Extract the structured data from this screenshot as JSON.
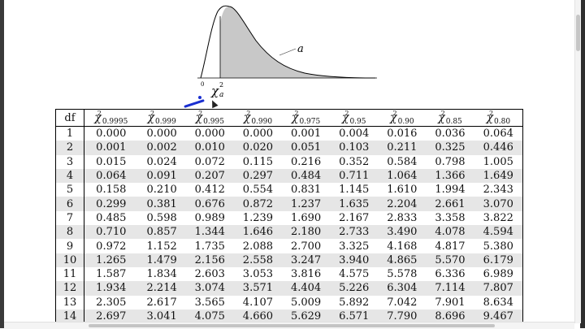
{
  "figure": {
    "area_label": "a",
    "axis_zero": "0",
    "critical_value_label": "χ",
    "critical_value_sup": "2",
    "critical_value_sub": "a",
    "shade_color": "#c8c8c8"
  },
  "table": {
    "df_header": "df",
    "columns": [
      {
        "symbol": "χ",
        "sup": "2",
        "sub": "0.9995"
      },
      {
        "symbol": "χ",
        "sup": "2",
        "sub": "0.999"
      },
      {
        "symbol": "χ",
        "sup": "2",
        "sub": "0.995"
      },
      {
        "symbol": "χ",
        "sup": "2",
        "sub": "0.990"
      },
      {
        "symbol": "χ",
        "sup": "2",
        "sub": "0.975"
      },
      {
        "symbol": "χ",
        "sup": "2",
        "sub": "0.95"
      },
      {
        "symbol": "χ",
        "sup": "2",
        "sub": "0.90"
      },
      {
        "symbol": "χ",
        "sup": "2",
        "sub": "0.85"
      },
      {
        "symbol": "χ",
        "sup": "2",
        "sub": "0.80"
      }
    ],
    "rows": [
      {
        "df": "1",
        "values": [
          "0.000",
          "0.000",
          "0.000",
          "0.000",
          "0.001",
          "0.004",
          "0.016",
          "0.036",
          "0.064"
        ]
      },
      {
        "df": "2",
        "values": [
          "0.001",
          "0.002",
          "0.010",
          "0.020",
          "0.051",
          "0.103",
          "0.211",
          "0.325",
          "0.446"
        ]
      },
      {
        "df": "3",
        "values": [
          "0.015",
          "0.024",
          "0.072",
          "0.115",
          "0.216",
          "0.352",
          "0.584",
          "0.798",
          "1.005"
        ]
      },
      {
        "df": "4",
        "values": [
          "0.064",
          "0.091",
          "0.207",
          "0.297",
          "0.484",
          "0.711",
          "1.064",
          "1.366",
          "1.649"
        ]
      },
      {
        "df": "5",
        "values": [
          "0.158",
          "0.210",
          "0.412",
          "0.554",
          "0.831",
          "1.145",
          "1.610",
          "1.994",
          "2.343"
        ]
      },
      {
        "df": "6",
        "values": [
          "0.299",
          "0.381",
          "0.676",
          "0.872",
          "1.237",
          "1.635",
          "2.204",
          "2.661",
          "3.070"
        ]
      },
      {
        "df": "7",
        "values": [
          "0.485",
          "0.598",
          "0.989",
          "1.239",
          "1.690",
          "2.167",
          "2.833",
          "3.358",
          "3.822"
        ]
      },
      {
        "df": "8",
        "values": [
          "0.710",
          "0.857",
          "1.344",
          "1.646",
          "2.180",
          "2.733",
          "3.490",
          "4.078",
          "4.594"
        ]
      },
      {
        "df": "9",
        "values": [
          "0.972",
          "1.152",
          "1.735",
          "2.088",
          "2.700",
          "3.325",
          "4.168",
          "4.817",
          "5.380"
        ]
      },
      {
        "df": "10",
        "values": [
          "1.265",
          "1.479",
          "2.156",
          "2.558",
          "3.247",
          "3.940",
          "4.865",
          "5.570",
          "6.179"
        ]
      },
      {
        "df": "11",
        "values": [
          "1.587",
          "1.834",
          "2.603",
          "3.053",
          "3.816",
          "4.575",
          "5.578",
          "6.336",
          "6.989"
        ]
      },
      {
        "df": "12",
        "values": [
          "1.934",
          "2.214",
          "3.074",
          "3.571",
          "4.404",
          "5.226",
          "6.304",
          "7.114",
          "7.807"
        ]
      },
      {
        "df": "13",
        "values": [
          "2.305",
          "2.617",
          "3.565",
          "4.107",
          "5.009",
          "5.892",
          "7.042",
          "7.901",
          "8.634"
        ]
      },
      {
        "df": "14",
        "values": [
          "2.697",
          "3.041",
          "4.075",
          "4.660",
          "5.629",
          "6.571",
          "7.790",
          "8.696",
          "9.467"
        ]
      }
    ]
  },
  "annotation": {
    "pen_color": "#1a2fd0"
  }
}
